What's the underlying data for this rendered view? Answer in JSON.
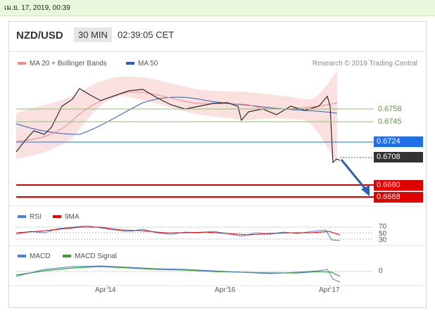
{
  "top_bar": {
    "datetime": "เม.ย. 17, 2019, 00:39"
  },
  "header": {
    "pair": "NZD/USD",
    "timeframe": "30 MIN",
    "time": "02:39:05 CET"
  },
  "main_legend": {
    "ma20": "MA 20 + Bollinger Bands",
    "ma50": "MA 50",
    "credit": "Research © 2019 Trading Central"
  },
  "levels": [
    {
      "value": "0.6758",
      "color": "#5aa02c",
      "style": "text"
    },
    {
      "value": "0.6745",
      "color": "#5aa02c",
      "style": "text"
    },
    {
      "value": "0.6724",
      "color": "#1f6fe5",
      "style": "tag"
    },
    {
      "value": "0.6708",
      "color": "#333333",
      "style": "tag"
    },
    {
      "value": "0.6680",
      "color": "#e00000",
      "style": "tag"
    },
    {
      "value": "0.6668",
      "color": "#e00000",
      "style": "tag"
    }
  ],
  "rsi": {
    "label": "RSI",
    "ma_label": "9MA",
    "levels": [
      "70",
      "50",
      "30"
    ]
  },
  "macd": {
    "label": "MACD",
    "signal_label": "MACD Signal",
    "zero": "0"
  },
  "x_axis": [
    "Apr 14",
    "Apr 16",
    "Apr 17"
  ],
  "colors": {
    "ma20": "#f08b8b",
    "ma50": "#2f5fb3",
    "rsi": "#4a7fd6",
    "nine_ma": "#e00000",
    "macd": "#4a7fd6",
    "macd_signal": "#3aa02c"
  }
}
